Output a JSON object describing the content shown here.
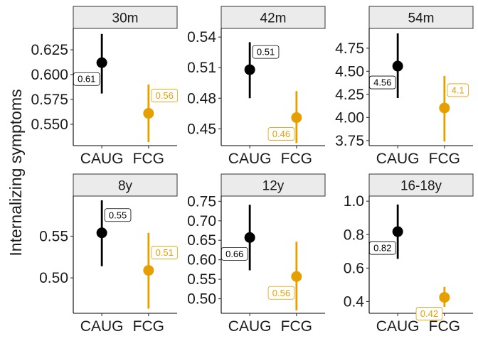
{
  "figure": {
    "ylabel": "Internalizing symptoms"
  },
  "colors": {
    "CAUG": "#000000",
    "FCG": "#E69F00",
    "strip_fill": "#EBEBEB",
    "strip_border": "#333333",
    "axis_line": "#000000"
  },
  "chart_data": [
    {
      "type": "pointrange",
      "title": "30m",
      "categories": [
        "CAUG",
        "FCG"
      ],
      "series": [
        {
          "name": "CAUG",
          "value": 0.612,
          "lower": 0.581,
          "upper": 0.641,
          "label": "0.61",
          "label_side": "lower-left"
        },
        {
          "name": "FCG",
          "value": 0.561,
          "lower": 0.532,
          "upper": 0.59,
          "label": "0.56",
          "label_side": "upper-right"
        }
      ],
      "yticks": [
        0.55,
        0.575,
        0.6,
        0.625
      ],
      "ytick_labels": [
        "0.550",
        "0.575",
        "0.600",
        "0.625"
      ],
      "ylim": [
        0.5285,
        0.6465
      ]
    },
    {
      "type": "pointrange",
      "title": "42m",
      "categories": [
        "CAUG",
        "FCG"
      ],
      "series": [
        {
          "name": "CAUG",
          "value": 0.508,
          "lower": 0.48,
          "upper": 0.535,
          "label": "0.51",
          "label_side": "upper-right"
        },
        {
          "name": "FCG",
          "value": 0.461,
          "lower": 0.436,
          "upper": 0.487,
          "label": "0.46",
          "label_side": "lower-left"
        }
      ],
      "yticks": [
        0.45,
        0.48,
        0.51,
        0.54
      ],
      "ytick_labels": [
        "0.45",
        "0.48",
        "0.51",
        "0.54"
      ],
      "ylim": [
        0.4335,
        0.5485
      ]
    },
    {
      "type": "pointrange",
      "title": "54m",
      "categories": [
        "CAUG",
        "FCG"
      ],
      "series": [
        {
          "name": "CAUG",
          "value": 4.556,
          "lower": 4.21,
          "upper": 4.91,
          "label": "4.56",
          "label_side": "lower-left"
        },
        {
          "name": "FCG",
          "value": 4.103,
          "lower": 3.74,
          "upper": 4.45,
          "label": "4.1",
          "label_side": "upper-right"
        }
      ],
      "yticks": [
        3.75,
        4.0,
        4.25,
        4.5,
        4.75
      ],
      "ytick_labels": [
        "3.75",
        "4.00",
        "4.25",
        "4.50",
        "4.75"
      ],
      "ylim": [
        3.695,
        4.964
      ]
    },
    {
      "type": "pointrange",
      "title": "8y",
      "categories": [
        "CAUG",
        "FCG"
      ],
      "series": [
        {
          "name": "CAUG",
          "value": 0.554,
          "lower": 0.514,
          "upper": 0.593,
          "label": "0.55",
          "label_side": "upper-right"
        },
        {
          "name": "FCG",
          "value": 0.509,
          "lower": 0.463,
          "upper": 0.554,
          "label": "0.51",
          "label_side": "upper-right"
        }
      ],
      "yticks": [
        0.5,
        0.55
      ],
      "ytick_labels": [
        "0.50",
        "0.55"
      ],
      "ylim": [
        0.4575,
        0.5981
      ]
    },
    {
      "type": "pointrange",
      "title": "12y",
      "categories": [
        "CAUG",
        "FCG"
      ],
      "series": [
        {
          "name": "CAUG",
          "value": 0.657,
          "lower": 0.573,
          "upper": 0.741,
          "label": "0.66",
          "label_side": "lower-left"
        },
        {
          "name": "FCG",
          "value": 0.557,
          "lower": 0.47,
          "upper": 0.646,
          "label": "0.56",
          "label_side": "lower-left"
        }
      ],
      "yticks": [
        0.5,
        0.55,
        0.6,
        0.65,
        0.7,
        0.75
      ],
      "ytick_labels": [
        "0.50",
        "0.55",
        "0.60",
        "0.65",
        "0.70",
        "0.75"
      ],
      "ylim": [
        0.4627,
        0.7634
      ]
    },
    {
      "type": "pointrange",
      "title": "16-18y",
      "categories": [
        "CAUG",
        "FCG"
      ],
      "series": [
        {
          "name": "CAUG",
          "value": 0.818,
          "lower": 0.655,
          "upper": 0.98,
          "label": "0.82",
          "label_side": "lower-left"
        },
        {
          "name": "FCG",
          "value": 0.425,
          "lower": 0.368,
          "upper": 0.488,
          "label": "0.42",
          "label_side": "lower-left"
        }
      ],
      "yticks": [
        0.4,
        0.6,
        0.8,
        1.0
      ],
      "ytick_labels": [
        "0.4",
        "0.6",
        "0.8",
        "1.0"
      ],
      "ylim": [
        0.3297,
        1.0306
      ]
    }
  ]
}
